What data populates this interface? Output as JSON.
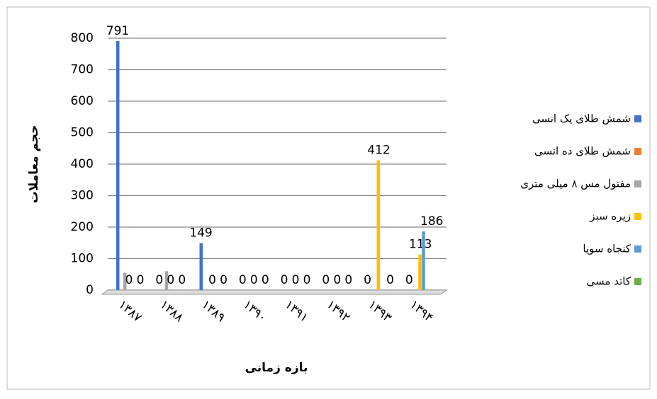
{
  "chart_data": {
    "type": "bar",
    "x_label": "بازه زمانی",
    "y_label": "حجم معاملات",
    "categories": [
      "۱۳۸۷",
      "۱۳۸۸",
      "۱۳۸۹",
      "۱۳۹۰",
      "۱۳۹۱",
      "۱۳۹۲",
      "۱۳۹۳",
      "۱۳۹۴"
    ],
    "series": [
      {
        "name": "شمش طلای یک انسی",
        "color": "#4472c4",
        "values": [
          791,
          0,
          149,
          0,
          0,
          0,
          0,
          0
        ],
        "data_labels": true
      },
      {
        "name": "شمش طلای ده انسی",
        "color": "#ed7d31",
        "values": [
          0,
          0,
          0,
          0,
          0,
          0,
          0,
          0
        ],
        "data_labels": false
      },
      {
        "name": "مفتول مس ۸ میلی متری",
        "color": "#a5a5a5",
        "values": [
          55,
          60,
          0,
          0,
          0,
          0,
          0,
          0
        ],
        "data_labels": false
      },
      {
        "name": "زیره سبز",
        "color": "#ffc000",
        "values": [
          0,
          0,
          0,
          0,
          0,
          0,
          412,
          113
        ],
        "data_labels": true
      },
      {
        "name": "کنجاه سویا",
        "color": "#5b9bd5",
        "values": [
          0,
          0,
          0,
          0,
          0,
          0,
          0,
          186
        ],
        "data_labels": true
      },
      {
        "name": "کاتد مسی",
        "color": "#70ad47",
        "values": [
          0,
          0,
          0,
          0,
          0,
          0,
          0,
          0
        ],
        "data_labels": false
      }
    ],
    "ylim": [
      0,
      800
    ],
    "yticks": [
      0,
      100,
      200,
      300,
      400,
      500,
      600,
      700,
      800
    ],
    "grid": true,
    "legend": "right"
  }
}
